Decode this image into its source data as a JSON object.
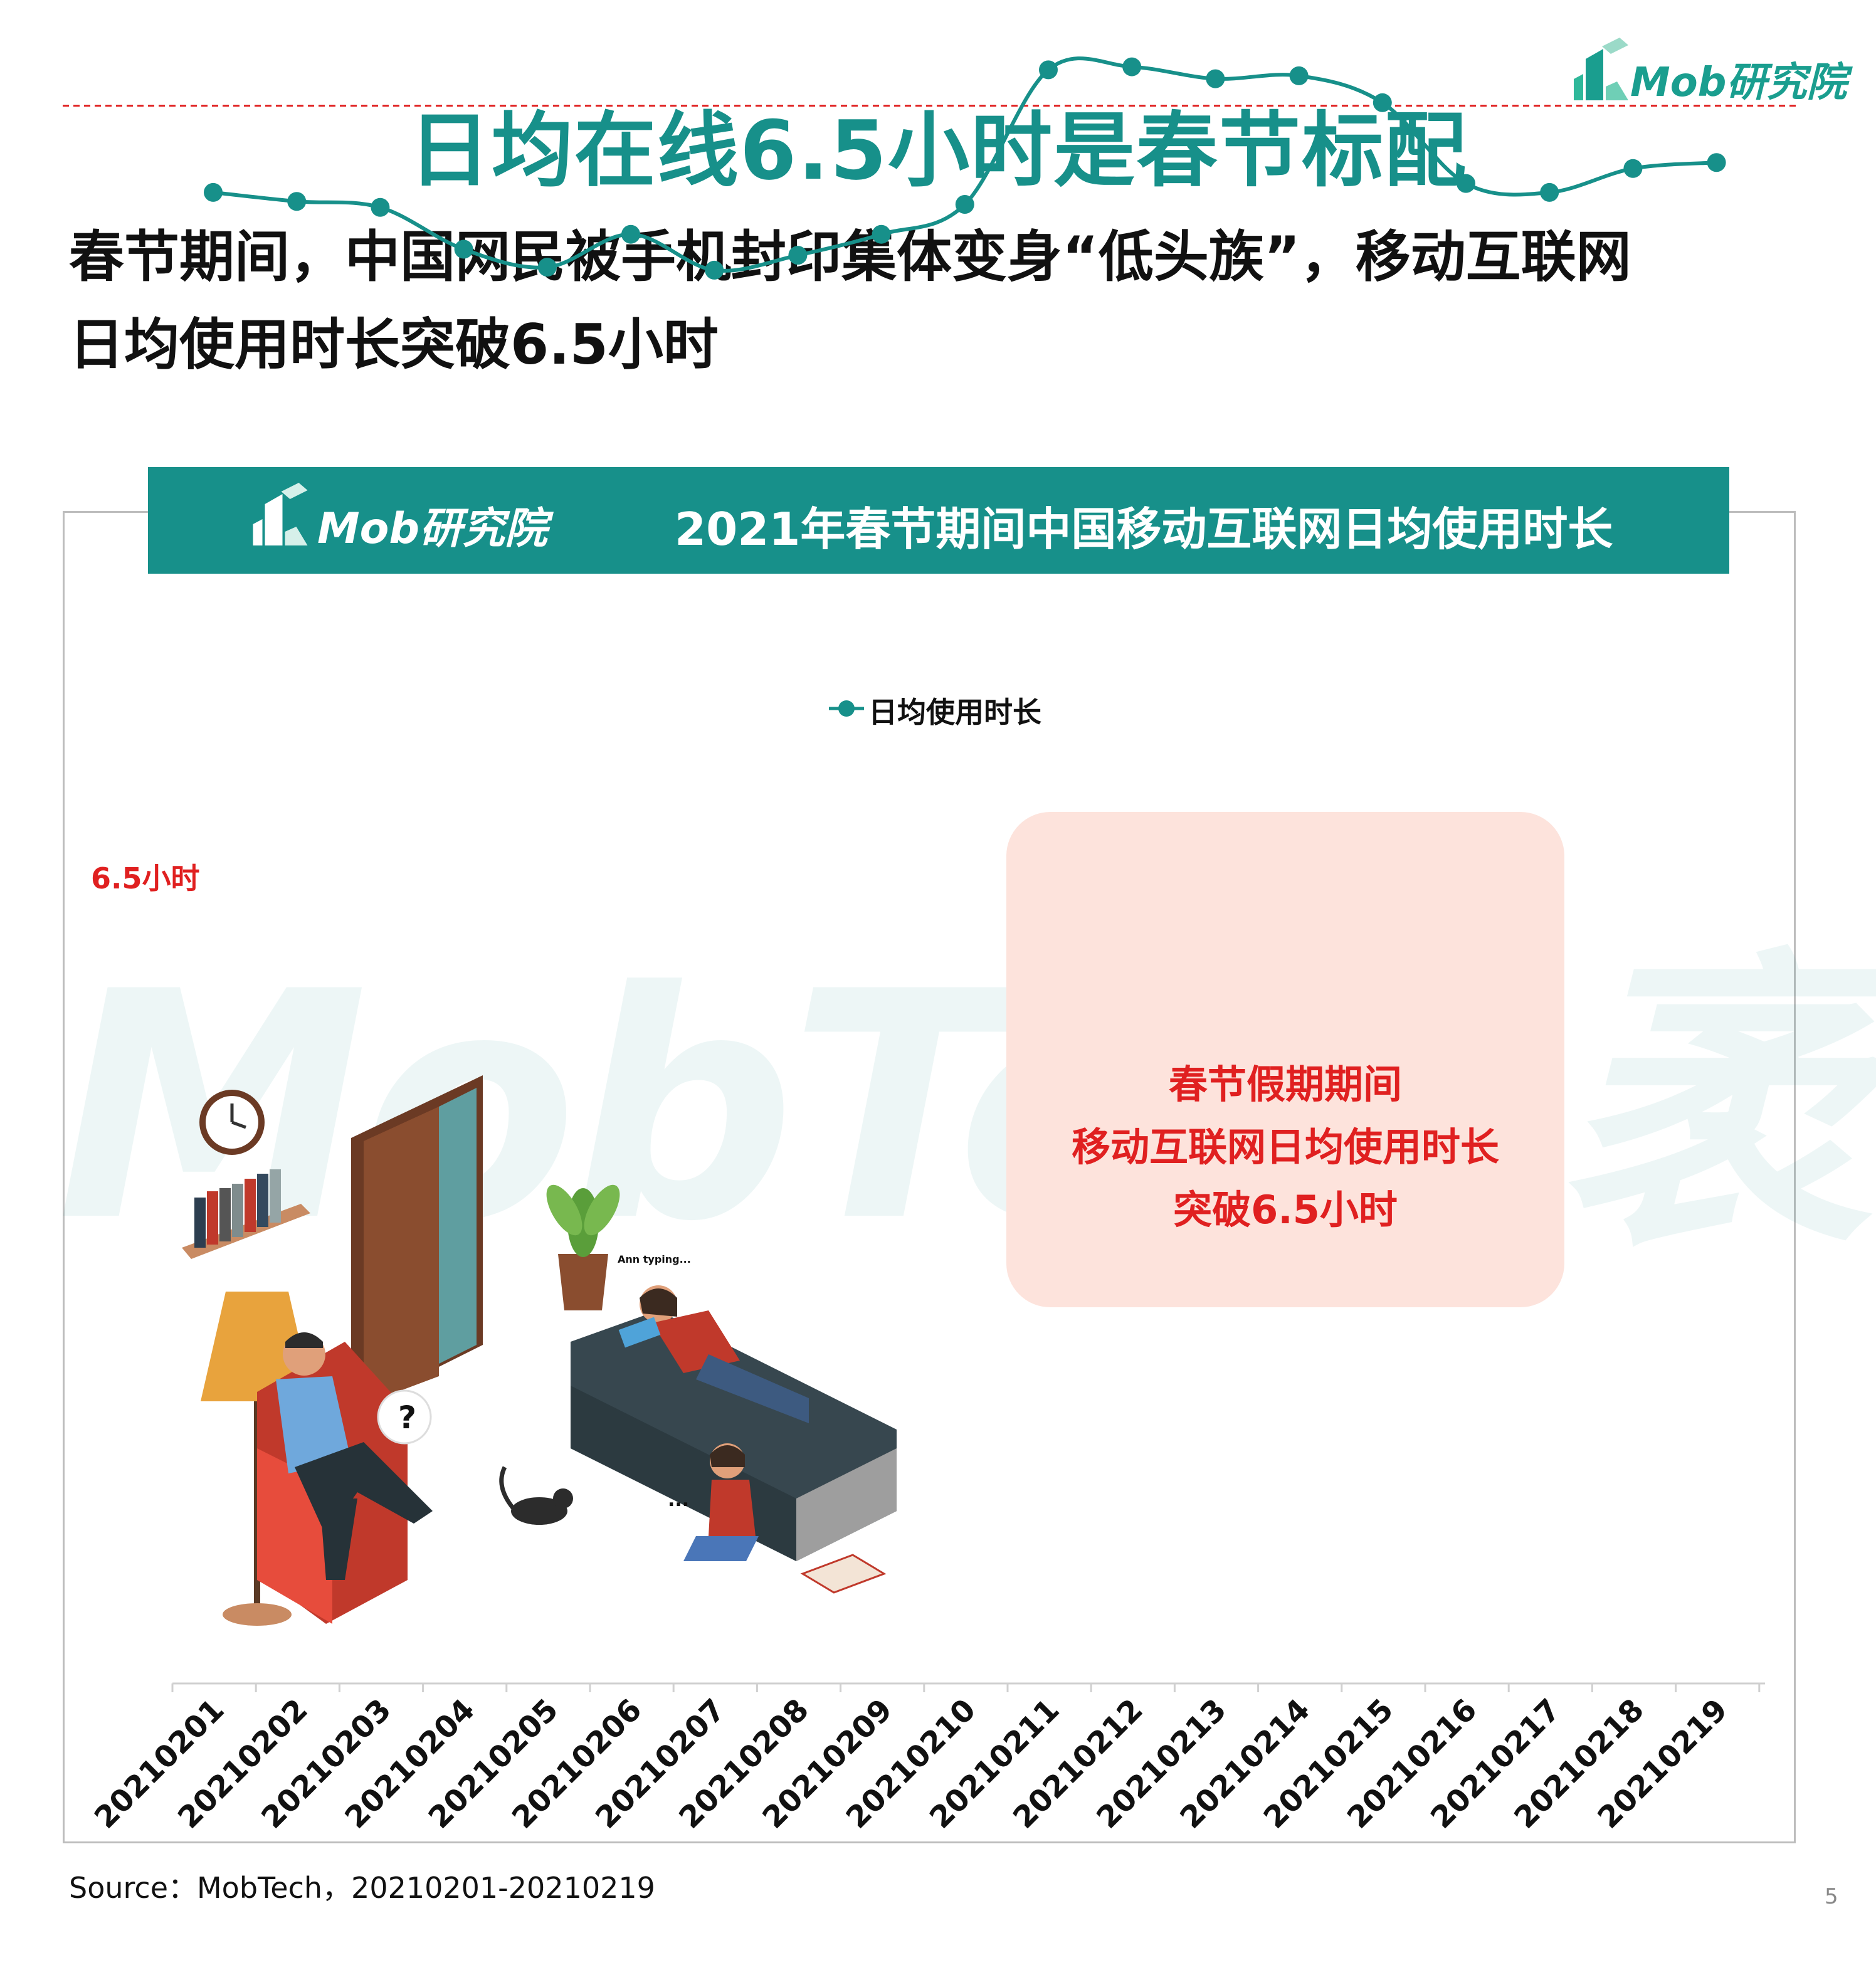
{
  "brand": {
    "logo_text": "Mob研究院",
    "accent_color": "#17908a",
    "watermark_text": "MobTech袤博"
  },
  "page": {
    "title": "日均在线6.5小时是春节标配",
    "subtitle_line1": "春节期间，中国网民被手机封印集体变身“低头族”，移动互联网",
    "subtitle_line2": "日均使用时长突破6.5小时",
    "source": "Source：MobTech，20210201-20210219",
    "page_number": "5"
  },
  "callout": {
    "line1": "春节假期期间",
    "line2": "移动互联网日均使用时长",
    "line3": "突破6.5小时"
  },
  "illustration": {
    "bubble_text": "Ann typing...",
    "question_mark": "?",
    "ellipsis": "..."
  },
  "chart_data": {
    "type": "line",
    "title": "2021年春节期间中国移动互联网日均使用时长",
    "categories": [
      "20210201",
      "20210202",
      "20210203",
      "20210204",
      "20210205",
      "20210206",
      "20210207",
      "20210208",
      "20210209",
      "20210210",
      "20210211",
      "20210212",
      "20210213",
      "20210214",
      "20210215",
      "20210216",
      "20210217",
      "20210218",
      "20210219"
    ],
    "series": [
      {
        "name": "日均使用时长",
        "color": "#17908a",
        "values": [
          6.17,
          6.14,
          6.12,
          5.98,
          5.92,
          6.03,
          5.91,
          5.96,
          6.03,
          6.13,
          6.58,
          6.59,
          6.55,
          6.56,
          6.47,
          6.2,
          6.17,
          6.25,
          6.27
        ]
      }
    ],
    "reference_line": {
      "value": 6.46,
      "label": "6.5小时",
      "color": "#e02020",
      "style": "dashed"
    },
    "ylim": [
      4.1,
      7.25
    ],
    "legend_position": "top-center",
    "grid": false
  }
}
